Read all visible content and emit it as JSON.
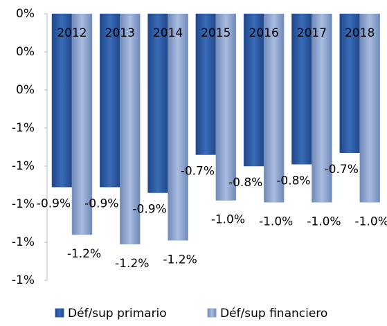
{
  "chart_data": {
    "type": "bar",
    "categories": [
      "2012",
      "2013",
      "2014",
      "2015",
      "2016",
      "2017",
      "2018"
    ],
    "series": [
      {
        "name": "Déf/sup primario",
        "color": "#2f5ea8",
        "values": [
          -0.91,
          -0.91,
          -0.94,
          -0.74,
          -0.8,
          -0.79,
          -0.73
        ],
        "value_labels": [
          "-0.9%",
          "-0.9%",
          "-0.9%",
          "-0.7%",
          "-0.8%",
          "-0.8%",
          "-0.7%"
        ]
      },
      {
        "name": "Déf/sup financiero",
        "color": "#8ea5d1",
        "values": [
          -1.16,
          -1.21,
          -1.19,
          -0.98,
          -0.99,
          -0.99,
          -0.99
        ],
        "value_labels": [
          "-1.2%",
          "-1.2%",
          "-1.2%",
          "-1.0%",
          "-1.0%",
          "-1.0%",
          "-1.0%"
        ]
      }
    ],
    "ylim": [
      -1.4,
      0
    ],
    "yticks": [
      {
        "value": 0,
        "label": "0%"
      },
      {
        "value": -0.2,
        "label": "0%"
      },
      {
        "value": -0.4,
        "label": "0%"
      },
      {
        "value": -0.6,
        "label": "-1%"
      },
      {
        "value": -0.8,
        "label": "-1%"
      },
      {
        "value": -1.0,
        "label": "-1%"
      },
      {
        "value": -1.2,
        "label": "-1%"
      },
      {
        "value": -1.4,
        "label": "-1%"
      }
    ],
    "legend": "bottom"
  }
}
